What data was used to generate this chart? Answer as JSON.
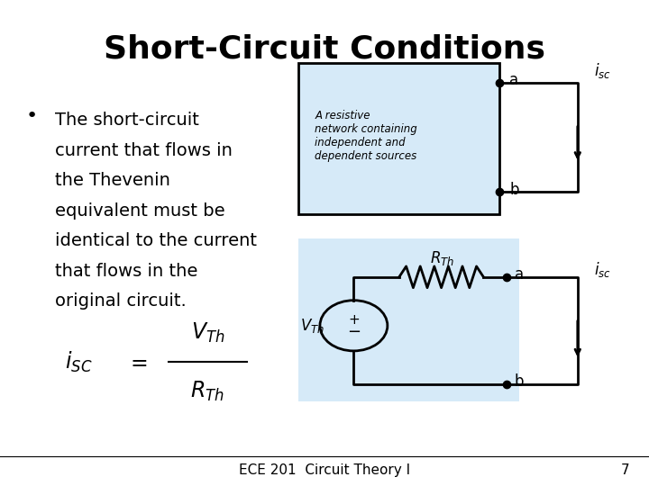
{
  "title": "Short-Circuit Conditions",
  "title_fontsize": 26,
  "title_fontweight": "bold",
  "bg_color": "#ffffff",
  "bullet_text": [
    "The short-circuit",
    "current that flows in",
    "the Thevenin",
    "equivalent must be",
    "identical to the current",
    "that flows in the",
    "original circuit."
  ],
  "bullet_fontsize": 14,
  "box1_color": "#d6eaf8",
  "box2_color": "#d6eaf8",
  "footer_text": "ECE 201  Circuit Theory I",
  "footer_number": "7",
  "footer_fontsize": 11
}
